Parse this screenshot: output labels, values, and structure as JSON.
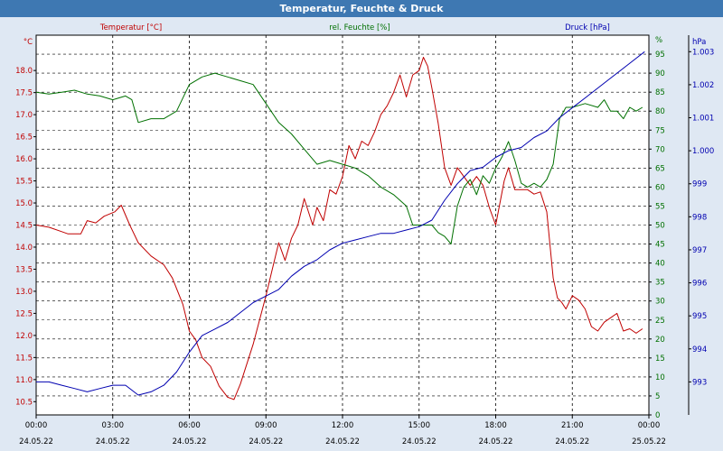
{
  "window": {
    "title": "Temperatur, Feuchte & Druck"
  },
  "colors": {
    "temperature": "#c00000",
    "humidity": "#007000",
    "pressure": "#0000b0",
    "background": "#dfe8f3"
  },
  "chart_data": {
    "type": "line",
    "title": "Temperatur, Feuchte & Druck",
    "grid": true,
    "x_ticks": [
      {
        "time": "00:00",
        "date": "24.05.22"
      },
      {
        "time": "03:00",
        "date": "24.05.22"
      },
      {
        "time": "06:00",
        "date": "24.05.22"
      },
      {
        "time": "09:00",
        "date": "24.05.22"
      },
      {
        "time": "12:00",
        "date": "24.05.22"
      },
      {
        "time": "15:00",
        "date": "24.05.22"
      },
      {
        "time": "18:00",
        "date": "24.05.22"
      },
      {
        "time": "21:00",
        "date": "24.05.22"
      },
      {
        "time": "00:00",
        "date": "25.05.22"
      }
    ],
    "x_range": [
      "24.05.22 00:00",
      "25.05.22 00:00"
    ],
    "axes": {
      "left": {
        "label": "Temperatur [°C]",
        "unit": "°C",
        "range": [
          10.2,
          18.8
        ],
        "ticks": [
          "18.0",
          "17.5",
          "17.0",
          "16.5",
          "16.0",
          "15.5",
          "15.0",
          "14.5",
          "14.0",
          "13.5",
          "13.0",
          "12.5",
          "12.0",
          "11.5",
          "11.0",
          "10.5"
        ]
      },
      "right1": {
        "label": "rel. Feuchte [%]",
        "unit": "%",
        "range": [
          0,
          100
        ],
        "ticks": [
          "95",
          "90",
          "85",
          "80",
          "75",
          "70",
          "65",
          "60",
          "55",
          "50",
          "45",
          "40",
          "35",
          "30",
          "25",
          "20",
          "15",
          "10",
          "5",
          "0"
        ]
      },
      "right2": {
        "label": "Druck [hPa]",
        "unit": "hPa",
        "range": [
          992.0,
          1003.5
        ],
        "ticks": [
          "1.003",
          "1.002",
          "1.001",
          "1.000",
          "999",
          "998",
          "997",
          "996",
          "995",
          "994",
          "993"
        ]
      }
    },
    "series": [
      {
        "name": "Temperatur [°C]",
        "axis": "left",
        "x": [
          "24.05.22 00:00",
          "24.05.22 00:30",
          "24.05.22 01:00",
          "24.05.22 01:15",
          "24.05.22 01:45",
          "24.05.22 02:00",
          "24.05.22 02:20",
          "24.05.22 02:40",
          "24.05.22 03:05",
          "24.05.22 03:20",
          "24.05.22 03:40",
          "24.05.22 04:00",
          "24.05.22 04:30",
          "24.05.22 05:00",
          "24.05.22 05:20",
          "24.05.22 05:45",
          "24.05.22 06:00",
          "24.05.22 06:15",
          "24.05.22 06:30",
          "24.05.22 06:50",
          "24.05.22 07:10",
          "24.05.22 07:30",
          "24.05.22 07:45",
          "24.05.22 08:00",
          "24.05.22 08:30",
          "24.05.22 09:00",
          "24.05.22 09:15",
          "24.05.22 09:30",
          "24.05.22 09:45",
          "24.05.22 10:00",
          "24.05.22 10:15",
          "24.05.22 10:30",
          "24.05.22 10:50",
          "24.05.22 11:00",
          "24.05.22 11:15",
          "24.05.22 11:30",
          "24.05.22 11:45",
          "24.05.22 12:00",
          "24.05.22 12:15",
          "24.05.22 12:30",
          "24.05.22 12:45",
          "24.05.22 13:00",
          "24.05.22 13:15",
          "24.05.22 13:30",
          "24.05.22 13:45",
          "24.05.22 14:00",
          "24.05.22 14:15",
          "24.05.22 14:30",
          "24.05.22 14:45",
          "24.05.22 15:00",
          "24.05.22 15:10",
          "24.05.22 15:20",
          "24.05.22 15:30",
          "24.05.22 15:45",
          "24.05.22 16:00",
          "24.05.22 16:15",
          "24.05.22 16:30",
          "24.05.22 16:45",
          "24.05.22 17:00",
          "24.05.22 17:15",
          "24.05.22 17:30",
          "24.05.22 17:45",
          "24.05.22 18:00",
          "24.05.22 18:10",
          "24.05.22 18:20",
          "24.05.22 18:30",
          "24.05.22 18:45",
          "24.05.22 19:00",
          "24.05.22 19:15",
          "24.05.22 19:30",
          "24.05.22 19:45",
          "24.05.22 20:00",
          "24.05.22 20:15",
          "24.05.22 20:25",
          "24.05.22 20:35",
          "24.05.22 20:45",
          "24.05.22 21:00",
          "24.05.22 21:15",
          "24.05.22 21:30",
          "24.05.22 21:45",
          "24.05.22 22:00",
          "24.05.22 22:15",
          "24.05.22 22:30",
          "24.05.22 22:45",
          "24.05.22 23:00",
          "24.05.22 23:15",
          "24.05.22 23:30",
          "24.05.22 23:45"
        ],
        "values": [
          14.5,
          14.45,
          14.35,
          14.3,
          14.3,
          14.6,
          14.55,
          14.7,
          14.8,
          14.95,
          14.5,
          14.1,
          13.8,
          13.6,
          13.3,
          12.7,
          12.1,
          11.9,
          11.5,
          11.3,
          10.85,
          10.6,
          10.55,
          10.9,
          11.8,
          12.9,
          13.5,
          14.1,
          13.7,
          14.2,
          14.5,
          15.1,
          14.5,
          14.9,
          14.6,
          15.3,
          15.2,
          15.6,
          16.3,
          16.0,
          16.4,
          16.3,
          16.6,
          17.0,
          17.2,
          17.5,
          17.9,
          17.4,
          17.9,
          18.0,
          18.3,
          18.1,
          17.6,
          16.8,
          15.8,
          15.4,
          15.8,
          15.6,
          15.4,
          15.6,
          15.4,
          14.9,
          14.5,
          15.0,
          15.5,
          15.8,
          15.3,
          15.3,
          15.3,
          15.2,
          15.25,
          14.8,
          13.3,
          12.85,
          12.75,
          12.6,
          12.9,
          12.8,
          12.6,
          12.2,
          12.1,
          12.3,
          12.4,
          12.5,
          12.1,
          12.15,
          12.05,
          12.15
        ]
      },
      {
        "name": "rel. Feuchte [%]",
        "axis": "right1",
        "x": [
          "24.05.22 00:00",
          "24.05.22 00:30",
          "24.05.22 01:00",
          "24.05.22 01:30",
          "24.05.22 02:00",
          "24.05.22 02:30",
          "24.05.22 03:00",
          "24.05.22 03:30",
          "24.05.22 03:45",
          "24.05.22 04:00",
          "24.05.22 04:30",
          "24.05.22 05:00",
          "24.05.22 05:30",
          "24.05.22 06:00",
          "24.05.22 06:30",
          "24.05.22 07:00",
          "24.05.22 07:30",
          "24.05.22 08:00",
          "24.05.22 08:30",
          "24.05.22 09:00",
          "24.05.22 09:30",
          "24.05.22 10:00",
          "24.05.22 10:30",
          "24.05.22 11:00",
          "24.05.22 11:30",
          "24.05.22 12:00",
          "24.05.22 12:30",
          "24.05.22 13:00",
          "24.05.22 13:30",
          "24.05.22 14:00",
          "24.05.22 14:30",
          "24.05.22 14:45",
          "24.05.22 15:00",
          "24.05.22 15:15",
          "24.05.22 15:30",
          "24.05.22 15:45",
          "24.05.22 16:00",
          "24.05.22 16:15",
          "24.05.22 16:30",
          "24.05.22 16:45",
          "24.05.22 17:00",
          "24.05.22 17:15",
          "24.05.22 17:30",
          "24.05.22 17:45",
          "24.05.22 18:00",
          "24.05.22 18:15",
          "24.05.22 18:30",
          "24.05.22 18:45",
          "24.05.22 19:00",
          "24.05.22 19:15",
          "24.05.22 19:30",
          "24.05.22 19:45",
          "24.05.22 20:00",
          "24.05.22 20:15",
          "24.05.22 20:30",
          "24.05.22 20:45",
          "24.05.22 21:00",
          "24.05.22 21:30",
          "24.05.22 22:00",
          "24.05.22 22:15",
          "24.05.22 22:30",
          "24.05.22 22:45",
          "24.05.22 23:00",
          "24.05.22 23:15",
          "24.05.22 23:30",
          "24.05.22 23:45"
        ],
        "values": [
          85,
          84.5,
          85,
          85.5,
          84.5,
          84,
          83,
          84,
          83,
          77,
          78,
          78,
          80,
          87,
          89,
          90,
          89,
          88,
          87,
          82,
          77,
          74,
          70,
          66,
          67,
          66,
          65,
          63,
          60,
          58,
          55,
          50,
          50,
          50,
          50,
          48,
          47,
          45,
          55,
          60,
          62,
          58,
          63,
          61,
          65,
          68,
          72,
          67,
          61,
          60,
          61,
          60,
          62,
          66,
          78,
          81,
          81,
          82,
          81,
          83,
          80,
          80,
          78,
          81,
          80,
          81
        ]
      },
      {
        "name": "Druck [hPa]",
        "axis": "right2",
        "x": [
          "24.05.22 00:00",
          "24.05.22 00:30",
          "24.05.22 01:00",
          "24.05.22 01:30",
          "24.05.22 02:00",
          "24.05.22 02:30",
          "24.05.22 03:00",
          "24.05.22 03:30",
          "24.05.22 04:00",
          "24.05.22 04:30",
          "24.05.22 05:00",
          "24.05.22 05:30",
          "24.05.22 06:00",
          "24.05.22 06:30",
          "24.05.22 07:00",
          "24.05.22 07:30",
          "24.05.22 08:00",
          "24.05.22 08:30",
          "24.05.22 09:00",
          "24.05.22 09:30",
          "24.05.22 10:00",
          "24.05.22 10:30",
          "24.05.22 11:00",
          "24.05.22 11:30",
          "24.05.22 12:00",
          "24.05.22 12:30",
          "24.05.22 13:00",
          "24.05.22 13:30",
          "24.05.22 14:00",
          "24.05.22 14:30",
          "24.05.22 15:00",
          "24.05.22 15:30",
          "24.05.22 16:00",
          "24.05.22 16:30",
          "24.05.22 17:00",
          "24.05.22 17:30",
          "24.05.22 18:00",
          "24.05.22 18:30",
          "24.05.22 19:00",
          "24.05.22 19:30",
          "24.05.22 20:00",
          "24.05.22 20:30",
          "24.05.22 21:00",
          "24.05.22 21:30",
          "24.05.22 22:00",
          "24.05.22 22:30",
          "24.05.22 23:00",
          "24.05.22 23:30",
          "24.05.22 23:50"
        ],
        "values": [
          993.0,
          993.0,
          992.9,
          992.8,
          992.7,
          992.8,
          992.9,
          992.9,
          992.6,
          992.7,
          992.9,
          993.3,
          993.9,
          994.4,
          994.6,
          994.8,
          995.1,
          995.4,
          995.6,
          995.8,
          996.2,
          996.5,
          996.7,
          997.0,
          997.2,
          997.3,
          997.4,
          997.5,
          997.5,
          997.6,
          997.7,
          997.9,
          998.5,
          999.0,
          999.4,
          999.5,
          999.8,
          1000.0,
          1000.1,
          1000.4,
          1000.6,
          1001.0,
          1001.3,
          1001.6,
          1001.9,
          1002.2,
          1002.5,
          1002.8,
          1003.0
        ]
      }
    ]
  }
}
